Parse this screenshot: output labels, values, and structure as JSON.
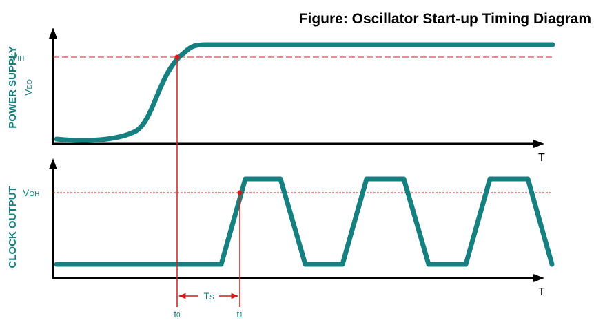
{
  "title": "Figure: Oscillator Start-up Timing Diagram",
  "colors": {
    "waveform": "#168080",
    "marker": "#d01c1c",
    "axis": "#000000",
    "label_teal": "#168080"
  },
  "top_panel": {
    "ylabel": "POWER SUPPLY",
    "signal_main": "V",
    "signal_sub": "DD",
    "level_main": "V",
    "level_sub": "IH",
    "axis_label": "T"
  },
  "bottom_panel": {
    "ylabel": "CLOCK OUTPUT",
    "level_main": "V",
    "level_sub": "OH",
    "axis_label": "T"
  },
  "timing": {
    "t0_main": "t",
    "t0_sub": "0",
    "t1_main": "t",
    "t1_sub": "1",
    "ts_main": "T",
    "ts_sub": "S"
  }
}
